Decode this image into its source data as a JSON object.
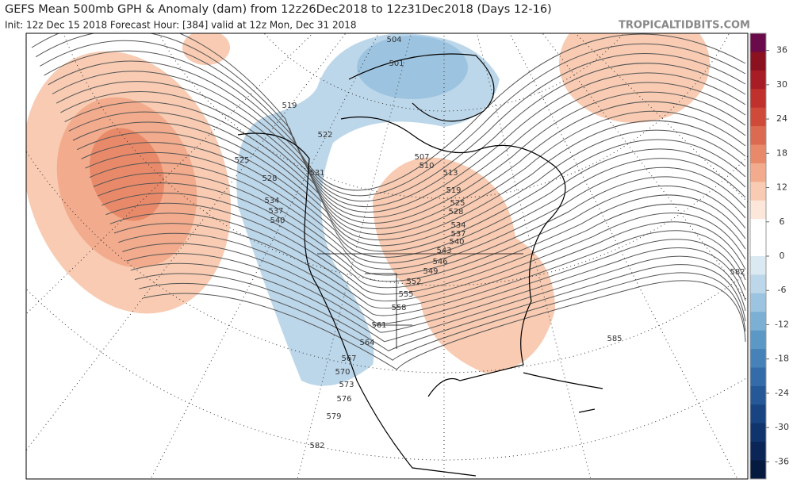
{
  "header": {
    "title": "GEFS Mean 500mb GPH & Anomaly (dam) from 12z26Dec2018 to 12z31Dec2018 (Days 12-16)",
    "subtitle": "Init: 12z Dec 15 2018   Forecast Hour: [384]   valid at 12z Mon, Dec 31 2018",
    "brand": "TROPICALTIDBITS.COM"
  },
  "colorbar": {
    "ticks": [
      36,
      30,
      24,
      18,
      12,
      6,
      0,
      -6,
      -12,
      -18,
      -24,
      -30,
      -36
    ],
    "colors": [
      "#6a0a4a",
      "#8b1020",
      "#a81c26",
      "#c0302c",
      "#d04a3a",
      "#dc6a50",
      "#e88a6a",
      "#f2ab8c",
      "#f8cbb2",
      "#fde6da",
      "#ffffff",
      "#ffffff",
      "#dbe9f3",
      "#bdd7ea",
      "#9cc4e0",
      "#7cafd4",
      "#5c98c6",
      "#4682b8",
      "#336ca8",
      "#245896",
      "#184582",
      "#10346c",
      "#0a2556",
      "#061a40"
    ]
  },
  "map": {
    "contour_labels": [
      504,
      501,
      519,
      522,
      525,
      528,
      531,
      534,
      537,
      540,
      507,
      510,
      513,
      519,
      525,
      528,
      534,
      537,
      540,
      543,
      546,
      549,
      552,
      555,
      558,
      561,
      564,
      567,
      570,
      573,
      576,
      579,
      582,
      582,
      585
    ]
  }
}
